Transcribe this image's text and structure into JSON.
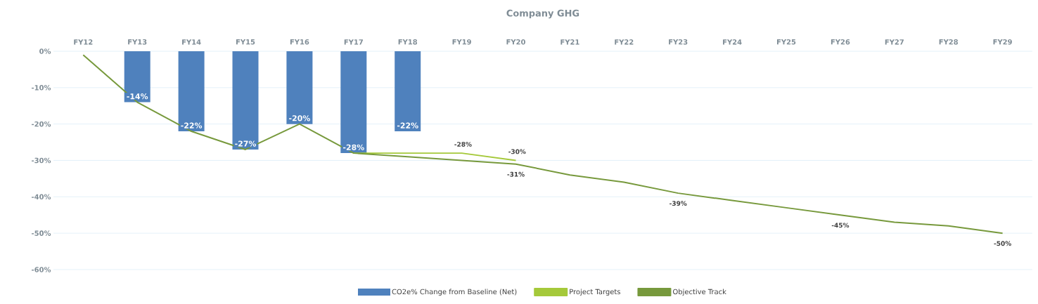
{
  "chart_data": {
    "type": "bar",
    "title": "Company GHG",
    "categories": [
      "FY12",
      "FY13",
      "FY14",
      "FY15",
      "FY16",
      "FY17",
      "FY18",
      "FY19",
      "FY20",
      "FY21",
      "FY22",
      "FY23",
      "FY24",
      "FY25",
      "FY26",
      "FY27",
      "FY28",
      "FY29"
    ],
    "series": [
      {
        "name": "CO2e% Change from Baseline (Net)",
        "color": "#4f81bd",
        "values": [
          null,
          -14,
          -22,
          -27,
          -20,
          -28,
          -22,
          null,
          null,
          null,
          null,
          null,
          null,
          null,
          null,
          null,
          null,
          null
        ],
        "value_labels": [
          null,
          "-14%",
          "-22%",
          "-27%",
          "-20%",
          "-28%",
          "-22%",
          null,
          null,
          null,
          null,
          null,
          null,
          null,
          null,
          null,
          null,
          null
        ]
      },
      {
        "name": "Project Targets",
        "type": "line",
        "color": "#a5c93a",
        "values": [
          null,
          null,
          null,
          null,
          null,
          -28,
          -28,
          -28,
          -30,
          null,
          null,
          null,
          null,
          null,
          null,
          null,
          null,
          null
        ],
        "value_labels": [
          null,
          null,
          null,
          null,
          null,
          null,
          null,
          "-28%",
          "-30%",
          null,
          null,
          null,
          null,
          null,
          null,
          null,
          null,
          null
        ]
      },
      {
        "name": "Objective Track",
        "type": "line",
        "color": "#77993c",
        "values": [
          -1,
          -14,
          -22,
          -27,
          -20,
          -28,
          -29,
          -30,
          -31,
          -34,
          -36,
          -39,
          -41,
          -43,
          -45,
          -47,
          -48,
          -50
        ],
        "value_labels": [
          null,
          null,
          null,
          null,
          null,
          null,
          null,
          null,
          "-31%",
          null,
          null,
          "-39%",
          null,
          null,
          "-45%",
          null,
          null,
          "-50%"
        ]
      }
    ],
    "ylim": [
      -60,
      0
    ],
    "yticks": [
      {
        "value": 0,
        "label": "0%"
      },
      {
        "value": -10,
        "label": "-10%"
      },
      {
        "value": -20,
        "label": "-20%"
      },
      {
        "value": -30,
        "label": "-30%"
      },
      {
        "value": -40,
        "label": "-40%"
      },
      {
        "value": -50,
        "label": "-50%"
      },
      {
        "value": -60,
        "label": "-60%"
      }
    ],
    "grid": "y",
    "legend": "bottom"
  }
}
